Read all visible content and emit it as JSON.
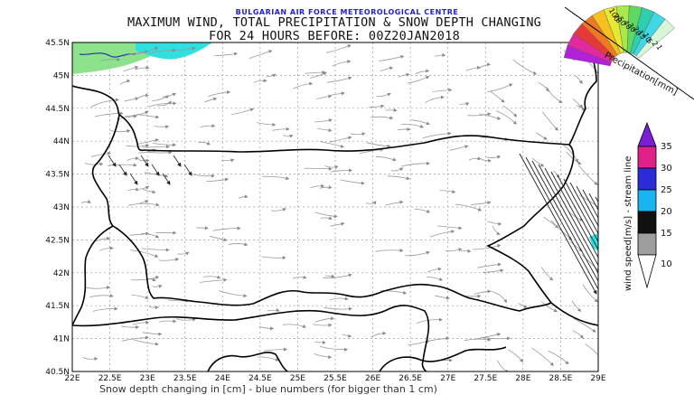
{
  "header": {
    "organization": "BULGARIAN AIR FORCE METEOROLOGICAL CENTRE",
    "title": "MAXIMUM WIND, TOTAL PRECIPITATION & SNOW DEPTH CHANGING",
    "subtitle": "FOR 24 HOURS BEFORE: 00Z20JAN2018"
  },
  "map": {
    "lon_ticks": [
      "22E",
      "22.5E",
      "23E",
      "23.5E",
      "24E",
      "24.5E",
      "25E",
      "25.5E",
      "26E",
      "26.5E",
      "27E",
      "27.5E",
      "28E",
      "28.5E",
      "29E"
    ],
    "lat_ticks": [
      "45.5N",
      "45N",
      "44.5N",
      "44N",
      "43.5N",
      "43N",
      "42.5N",
      "42N",
      "41.5N",
      "41N",
      "40.5N"
    ],
    "colors": {
      "border": "#000000",
      "grid": "#9a9a9a",
      "streamline": "#9a9a9a",
      "strong_wind": "#222222",
      "precip_light": "#7fe07f",
      "precip_cyan": "#2ee0e0"
    }
  },
  "wind_colorbar": {
    "title": "wind speed[m/s] - stream line",
    "ticks": [
      "35",
      "30",
      "25",
      "20",
      "15",
      "10"
    ],
    "colors": [
      "#7b1fd6",
      "#e0218a",
      "#2b2bd8",
      "#19b5f0",
      "#111111",
      "#9e9e9e"
    ]
  },
  "precip_colorbar": {
    "title": "Precipitation[mm]",
    "ticks": [
      "100",
      "70",
      "50",
      "40",
      "30",
      "20",
      "15",
      "10",
      "5",
      "2",
      "1"
    ],
    "colors": [
      "#b021d8",
      "#e02a9e",
      "#e63a3a",
      "#f07a22",
      "#f5c020",
      "#e8e830",
      "#a8e84a",
      "#5fd85f",
      "#2ecfae",
      "#40d8e6",
      "#d8f5d8"
    ]
  },
  "footnote": "Snow depth changing in [cm] - blue numbers (for bigger than 1 cm)"
}
